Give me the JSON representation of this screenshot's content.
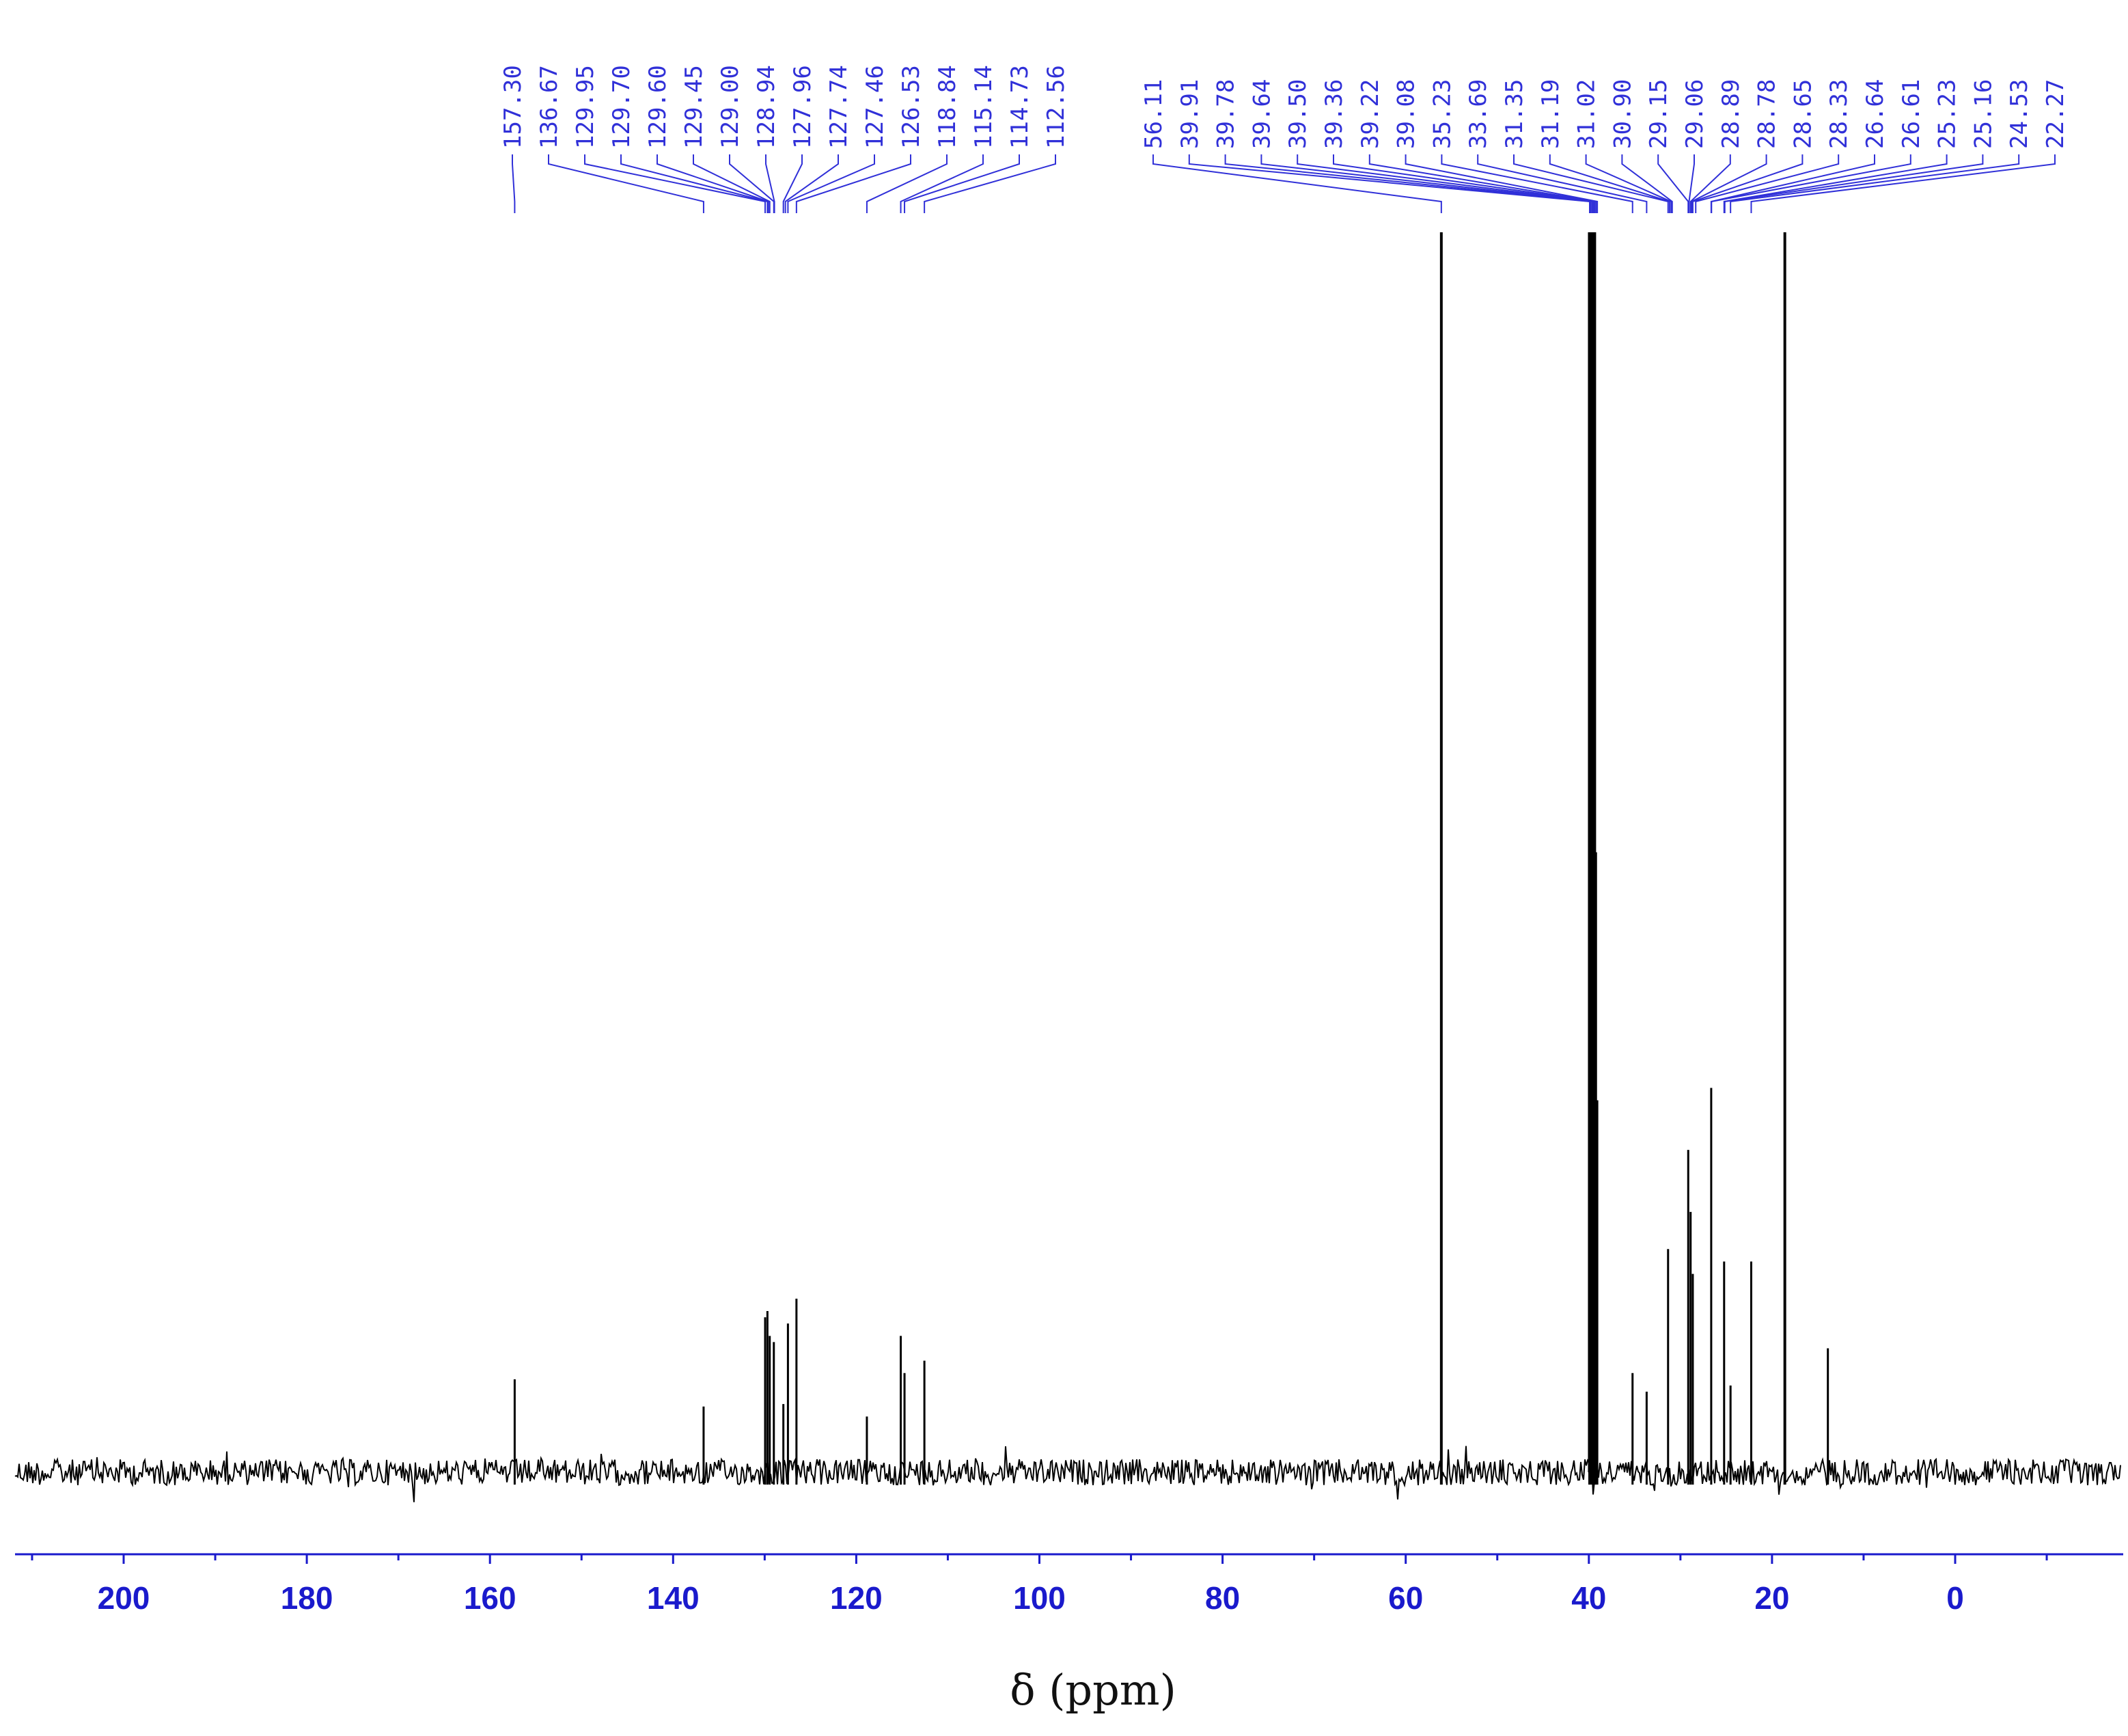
{
  "chart_data": {
    "type": "line",
    "xlabel": "δ (ppm)",
    "ylabel": "",
    "title": "",
    "x_reversed": true,
    "xlim": [
      212,
      -18
    ],
    "x_ticks_major": [
      200,
      180,
      160,
      140,
      120,
      100,
      80,
      60,
      40,
      20,
      0
    ],
    "x_ticks_minor_step": 10,
    "grid": false,
    "colors": {
      "spectrum": "#000000",
      "peak_labels": "#3030d8",
      "tick_labels": "#1a1acc",
      "axis": "#1a1acc"
    },
    "peak_labels_group_1": [
      "157.30",
      "136.67",
      "129.95",
      "129.70",
      "129.60",
      "129.45",
      "129.00",
      "128.94",
      "127.96",
      "127.74",
      "127.46",
      "126.53",
      "118.84",
      "115.14",
      "114.73",
      "112.56"
    ],
    "peak_labels_group_2": [
      "56.11",
      "39.91",
      "39.78",
      "39.64",
      "39.50",
      "39.36",
      "39.22",
      "39.08",
      "35.23",
      "33.69",
      "31.35",
      "31.19",
      "31.02",
      "30.90",
      "29.15",
      "29.06",
      "28.89",
      "28.78",
      "28.65",
      "28.33",
      "26.64",
      "26.61",
      "25.23",
      "25.16",
      "24.53",
      "22.27"
    ],
    "peaks": [
      {
        "ppm": 157.3,
        "height": 0.075
      },
      {
        "ppm": 136.67,
        "height": 0.053
      },
      {
        "ppm": 129.95,
        "height": 0.125
      },
      {
        "ppm": 129.7,
        "height": 0.13
      },
      {
        "ppm": 129.45,
        "height": 0.11
      },
      {
        "ppm": 129.0,
        "height": 0.105
      },
      {
        "ppm": 127.96,
        "height": 0.055
      },
      {
        "ppm": 127.46,
        "height": 0.12
      },
      {
        "ppm": 126.53,
        "height": 0.14
      },
      {
        "ppm": 118.84,
        "height": 0.045
      },
      {
        "ppm": 115.14,
        "height": 0.11
      },
      {
        "ppm": 114.73,
        "height": 0.08
      },
      {
        "ppm": 112.56,
        "height": 0.09
      },
      {
        "ppm": 56.11,
        "height": 1.0
      },
      {
        "ppm": 39.91,
        "height": 1.0
      },
      {
        "ppm": 39.78,
        "height": 1.0
      },
      {
        "ppm": 39.64,
        "height": 1.0
      },
      {
        "ppm": 39.5,
        "height": 1.0
      },
      {
        "ppm": 39.36,
        "height": 1.0
      },
      {
        "ppm": 39.22,
        "height": 0.5
      },
      {
        "ppm": 39.08,
        "height": 0.3
      },
      {
        "ppm": 35.23,
        "height": 0.08
      },
      {
        "ppm": 33.69,
        "height": 0.065
      },
      {
        "ppm": 31.35,
        "height": 0.18
      },
      {
        "ppm": 29.15,
        "height": 0.26
      },
      {
        "ppm": 28.89,
        "height": 0.21
      },
      {
        "ppm": 28.65,
        "height": 0.16
      },
      {
        "ppm": 26.64,
        "height": 0.31
      },
      {
        "ppm": 25.23,
        "height": 0.17
      },
      {
        "ppm": 24.53,
        "height": 0.07
      },
      {
        "ppm": 22.27,
        "height": 0.17
      },
      {
        "ppm": 18.6,
        "height": 1.0
      },
      {
        "ppm": 13.9,
        "height": 0.1
      }
    ]
  }
}
